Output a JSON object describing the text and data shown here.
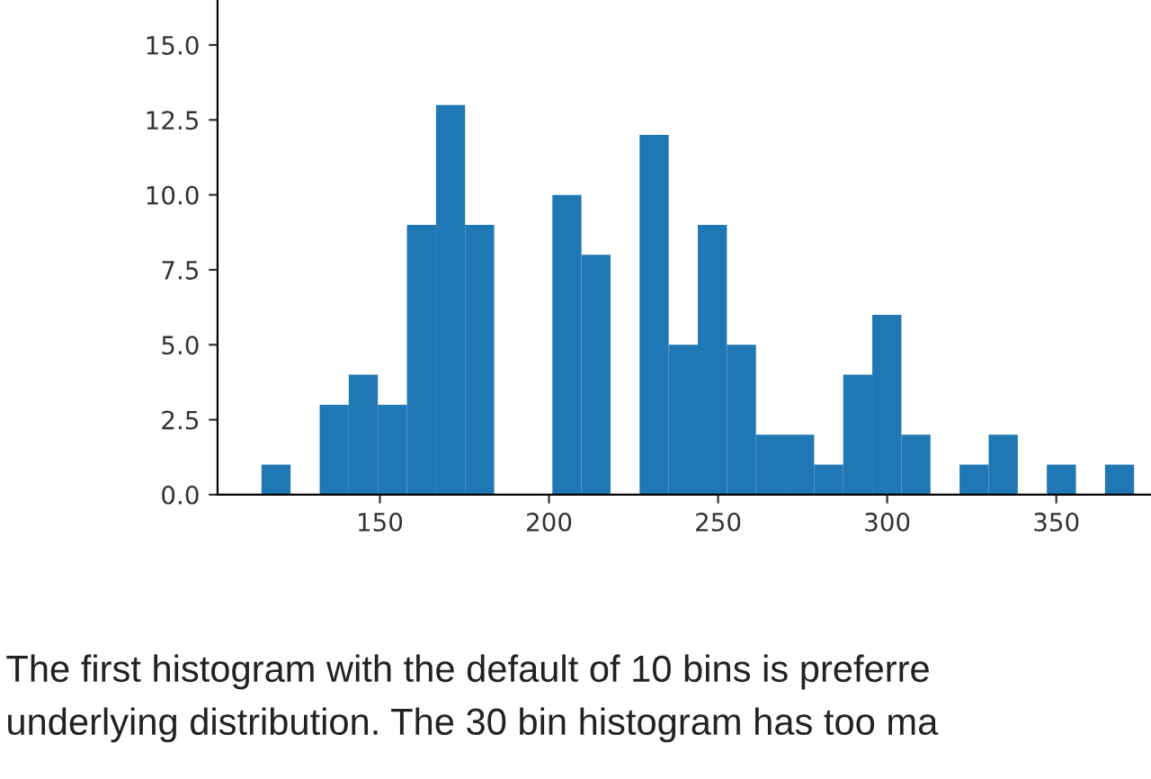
{
  "chart_data": {
    "type": "histogram",
    "bins": [
      115,
      123.6,
      132.2,
      140.8,
      149.4,
      158,
      166.6,
      175.2,
      183.8,
      192.4,
      201,
      209.6,
      218.2,
      226.8,
      235.4,
      244,
      252.6,
      261.2,
      269.8,
      278.4,
      287,
      295.6,
      304.2,
      312.8,
      321.4,
      330,
      338.6,
      347.2,
      355.8,
      364.4,
      373
    ],
    "values": [
      1,
      0,
      3,
      4,
      3,
      9,
      13,
      9,
      null,
      null,
      10,
      8,
      null,
      12,
      5,
      9,
      5,
      2,
      2,
      1,
      4,
      6,
      2,
      0,
      1,
      2,
      0,
      1,
      0,
      1
    ],
    "color": "#1f77b4",
    "xlim": [
      102,
      378
    ],
    "xticks": [
      150,
      200,
      250,
      300,
      350
    ],
    "ylim": [
      0,
      16.5
    ],
    "yticks": [
      {
        "value": 0,
        "label": "0.0"
      },
      {
        "value": 2.5,
        "label": "2.5"
      },
      {
        "value": 5,
        "label": "5.0"
      },
      {
        "value": 7.5,
        "label": "7.5"
      },
      {
        "value": 10,
        "label": "10.0"
      },
      {
        "value": 12.5,
        "label": "12.5"
      },
      {
        "value": 15,
        "label": "15.0"
      }
    ],
    "grid": false,
    "annotations": [
      "The first histogram with the default of 10 bins is preferre",
      "underlying distribution. The 30 bin histogram has too ma"
    ]
  }
}
